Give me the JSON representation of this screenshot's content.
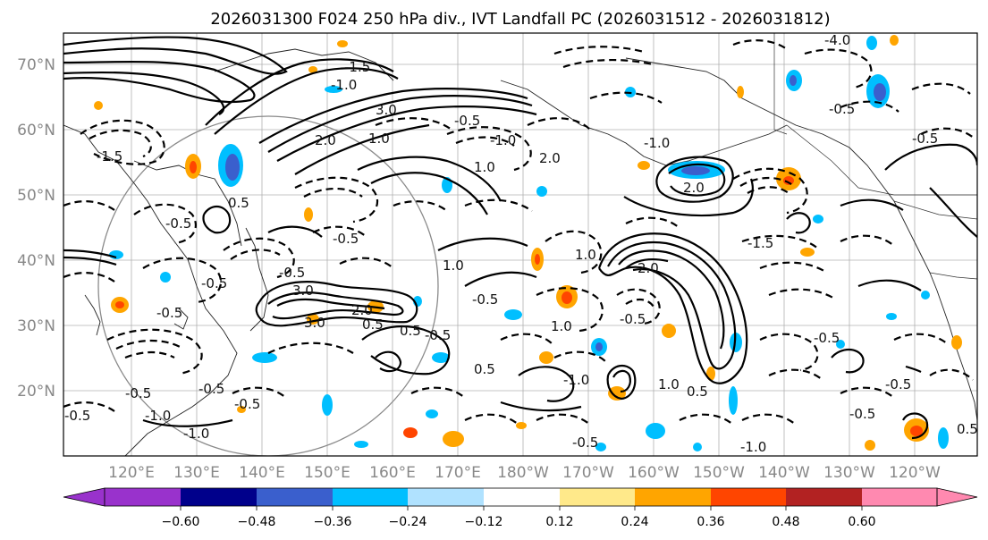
{
  "title": "2026031300 F024 250 hPa div., IVT Landfall PC (2026031512 - 2026031812)",
  "axes": {
    "lat_labels": [
      "70°N",
      "60°N",
      "50°N",
      "40°N",
      "30°N",
      "20°N"
    ],
    "lon_labels": [
      "120°E",
      "130°E",
      "140°E",
      "150°E",
      "160°E",
      "170°E",
      "180°W",
      "170°W",
      "160°W",
      "150°W",
      "140°W",
      "130°W",
      "120°W"
    ]
  },
  "colorbar": {
    "tick_labels": [
      "−0.60",
      "−0.48",
      "−0.36",
      "−0.24",
      "−0.12",
      "0.12",
      "0.24",
      "0.36",
      "0.48",
      "0.60"
    ],
    "colors": [
      "#9932cc",
      "#00008b",
      "#3a5fcd",
      "#00bfff",
      "#b0e2ff",
      "#ffffff",
      "#ffe98a",
      "#ffa500",
      "#ff4500",
      "#b22222",
      "#ff89b0"
    ],
    "under_color": "#9932cc",
    "over_color": "#ff89b0"
  },
  "contour_labels": [
    "-1.5",
    "-0.5",
    "-1.0",
    "-0.5",
    "-1.0",
    "-0.5",
    "-0.5",
    "-0.5",
    "-1.5",
    "-1.0",
    "2.0",
    "3.0",
    "1.0",
    "0.5",
    "1.0",
    "2.0",
    "-0.5",
    "-1.0",
    "-0.5",
    "-0.5",
    "-0.5",
    "3.0",
    "3.0",
    "2.0",
    "1.0",
    "1.0",
    "0.5",
    "-0.5",
    "-0.5",
    "1.0",
    "2.0",
    "-1.0",
    "1.0",
    "2.0",
    "-0.5",
    "-1.0",
    "0.5",
    "-1.5",
    "-0.5",
    "-0.5",
    "0.5",
    "-0.5",
    "0.5",
    "0.5",
    "-0.5",
    "-0.5",
    "-4.0",
    "-0.5",
    "-1.0",
    "-0.5"
  ]
}
